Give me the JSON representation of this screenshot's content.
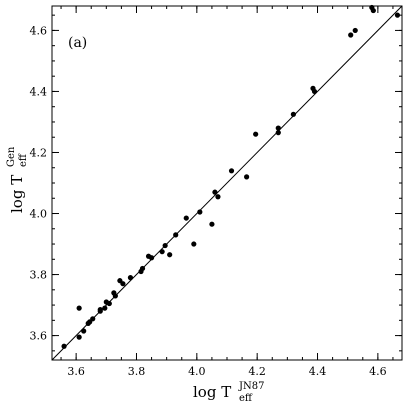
{
  "chart_data": {
    "type": "scatter",
    "panel_label": "(a)",
    "xlabel": {
      "base": "log T",
      "sup": "JN87",
      "sub": "eff"
    },
    "ylabel": {
      "base": "log T",
      "sup": "Gen",
      "sub": "eff"
    },
    "xlim": [
      3.52,
      4.68
    ],
    "ylim": [
      3.52,
      4.68
    ],
    "xticks": [
      "3.6",
      "3.8",
      "4.0",
      "4.2",
      "4.4",
      "4.6"
    ],
    "yticks": [
      "3.6",
      "3.8",
      "4.0",
      "4.2",
      "4.4",
      "4.6"
    ],
    "xtick_values": [
      3.6,
      3.8,
      4.0,
      4.2,
      4.4,
      4.6
    ],
    "ytick_values": [
      3.6,
      3.8,
      4.0,
      4.2,
      4.4,
      4.6
    ],
    "minor_step": 0.05,
    "grid": false,
    "reference_line": {
      "type": "identity",
      "from": [
        3.52,
        3.52
      ],
      "to": [
        4.68,
        4.68
      ]
    },
    "points": [
      [
        3.56,
        3.565
      ],
      [
        3.61,
        3.595
      ],
      [
        3.61,
        3.69
      ],
      [
        3.625,
        3.615
      ],
      [
        3.64,
        3.64
      ],
      [
        3.645,
        3.645
      ],
      [
        3.655,
        3.655
      ],
      [
        3.68,
        3.685
      ],
      [
        3.68,
        3.68
      ],
      [
        3.695,
        3.69
      ],
      [
        3.7,
        3.71
      ],
      [
        3.71,
        3.705
      ],
      [
        3.725,
        3.74
      ],
      [
        3.73,
        3.73
      ],
      [
        3.745,
        3.78
      ],
      [
        3.755,
        3.77
      ],
      [
        3.78,
        3.79
      ],
      [
        3.815,
        3.81
      ],
      [
        3.82,
        3.82
      ],
      [
        3.84,
        3.86
      ],
      [
        3.85,
        3.855
      ],
      [
        3.885,
        3.875
      ],
      [
        3.895,
        3.895
      ],
      [
        3.91,
        3.865
      ],
      [
        3.93,
        3.93
      ],
      [
        3.965,
        3.985
      ],
      [
        3.99,
        3.9
      ],
      [
        4.01,
        4.005
      ],
      [
        4.05,
        3.965
      ],
      [
        4.06,
        4.07
      ],
      [
        4.07,
        4.055
      ],
      [
        4.115,
        4.14
      ],
      [
        4.165,
        4.12
      ],
      [
        4.195,
        4.26
      ],
      [
        4.27,
        4.28
      ],
      [
        4.27,
        4.265
      ],
      [
        4.32,
        4.325
      ],
      [
        4.385,
        4.41
      ],
      [
        4.39,
        4.4
      ],
      [
        4.51,
        4.585
      ],
      [
        4.525,
        4.6
      ],
      [
        4.58,
        4.675
      ],
      [
        4.585,
        4.665
      ],
      [
        4.665,
        4.65
      ]
    ]
  }
}
